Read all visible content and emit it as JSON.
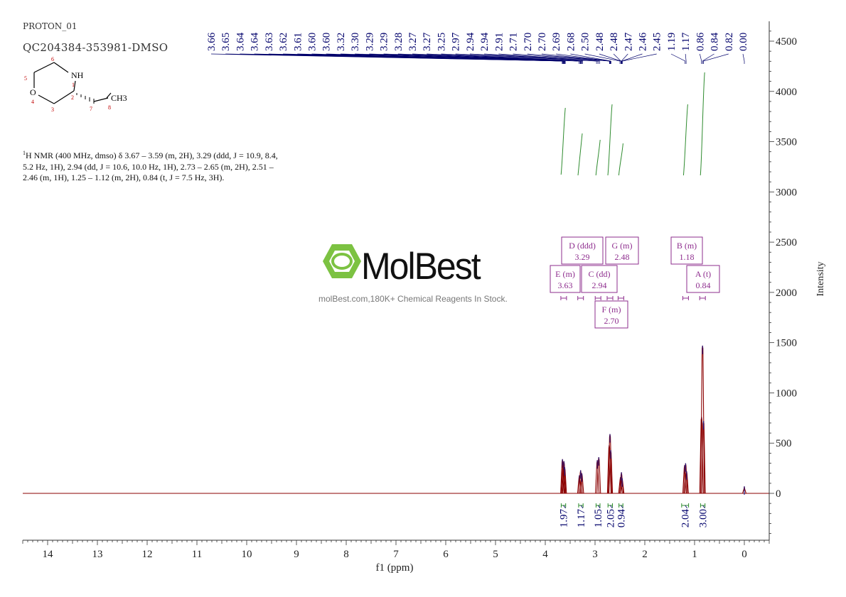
{
  "header": {
    "experiment": "PROTON_01",
    "sample_id": "QC204384-353981-DMSO"
  },
  "structure": {
    "atoms": {
      "nh": "NH",
      "o": "O",
      "ch3": "CH3"
    },
    "numbers": [
      "1",
      "2",
      "3",
      "4",
      "5",
      "6",
      "7",
      "8"
    ]
  },
  "nmr_text": "H NMR (400 MHz, dmso) δ 3.67 – 3.59 (m, 2H), 3.29 (ddd, J = 10.9, 8.4, 5.2 Hz, 1H), 2.94 (dd, J = 10.6, 10.0 Hz, 1H), 2.73 – 2.65 (m, 2H), 2.51 – 2.46 (m, 1H), 1.25 – 1.12 (m, 2H), 0.84 (t, J = 7.5 Hz, 3H).",
  "nmr_text_sup": "1",
  "watermark": {
    "brand": "MolBest",
    "tagline": "molBest.com,180K+ Chemical Reagents In Stock."
  },
  "colors": {
    "spectrum": "#8b0000",
    "peak_labels": "#00006b",
    "integral": "#2e8b2e",
    "multiplet_box": "#8e2d8e",
    "axis": "#333333"
  },
  "chart_data": {
    "type": "line",
    "xlabel": "f1 (ppm)",
    "ylabel": "Intensity",
    "xlim": [
      14.5,
      -0.5
    ],
    "ylim": [
      -450,
      4700
    ],
    "x_ticks": [
      14,
      13,
      12,
      11,
      10,
      9,
      8,
      7,
      6,
      5,
      4,
      3,
      2,
      1,
      0
    ],
    "y_ticks": [
      0,
      500,
      1000,
      1500,
      2000,
      2500,
      3000,
      3500,
      4000,
      4500
    ],
    "peak_labels": [
      "3.66",
      "3.65",
      "3.64",
      "3.64",
      "3.63",
      "3.62",
      "3.61",
      "3.60",
      "3.60",
      "3.32",
      "3.30",
      "3.29",
      "3.29",
      "3.28",
      "3.27",
      "3.27",
      "3.25",
      "2.97",
      "2.94",
      "2.94",
      "2.91",
      "2.71",
      "2.70",
      "2.70",
      "2.69",
      "2.68",
      "2.50",
      "2.48",
      "2.48",
      "2.47",
      "2.46",
      "2.45",
      "1.19",
      "1.17",
      "0.86",
      "0.84",
      "0.82",
      "0.00"
    ],
    "peaks": [
      {
        "ppm": 3.655,
        "height": 340
      },
      {
        "ppm": 3.64,
        "height": 300
      },
      {
        "ppm": 3.625,
        "height": 320
      },
      {
        "ppm": 3.61,
        "height": 260
      },
      {
        "ppm": 3.315,
        "height": 180
      },
      {
        "ppm": 3.29,
        "height": 230
      },
      {
        "ppm": 3.265,
        "height": 200
      },
      {
        "ppm": 2.955,
        "height": 330
      },
      {
        "ppm": 2.925,
        "height": 360
      },
      {
        "ppm": 2.715,
        "height": 480
      },
      {
        "ppm": 2.7,
        "height": 590
      },
      {
        "ppm": 2.685,
        "height": 430
      },
      {
        "ppm": 2.49,
        "height": 160
      },
      {
        "ppm": 2.47,
        "height": 210
      },
      {
        "ppm": 2.455,
        "height": 150
      },
      {
        "ppm": 1.2,
        "height": 280
      },
      {
        "ppm": 1.18,
        "height": 300
      },
      {
        "ppm": 1.16,
        "height": 220
      },
      {
        "ppm": 0.86,
        "height": 760
      },
      {
        "ppm": 0.84,
        "height": 1470
      },
      {
        "ppm": 0.82,
        "height": 720
      },
      {
        "ppm": 0.0,
        "height": 70
      }
    ],
    "integrals": [
      {
        "from": 3.68,
        "to": 3.59,
        "value": "1.97"
      },
      {
        "from": 3.33,
        "to": 3.24,
        "value": "1.17"
      },
      {
        "from": 2.98,
        "to": 2.9,
        "value": "1.05"
      },
      {
        "from": 2.74,
        "to": 2.65,
        "value": "2.05"
      },
      {
        "from": 2.52,
        "to": 2.44,
        "value": "0.94"
      },
      {
        "from": 1.26,
        "to": 1.12,
        "value": "2.04"
      },
      {
        "from": 0.88,
        "to": 0.79,
        "value": "3.00"
      }
    ],
    "multiplets": [
      {
        "label": "D (ddd)",
        "shift": "3.29",
        "ppm": 3.29
      },
      {
        "label": "G (m)",
        "shift": "2.48",
        "ppm": 2.48
      },
      {
        "label": "B (m)",
        "shift": "1.18",
        "ppm": 1.18
      },
      {
        "label": "E (m)",
        "shift": "3.63",
        "ppm": 3.63
      },
      {
        "label": "C (dd)",
        "shift": "2.94",
        "ppm": 2.94
      },
      {
        "label": "A (t)",
        "shift": "0.84",
        "ppm": 0.84
      },
      {
        "label": "F (m)",
        "shift": "2.70",
        "ppm": 2.7
      }
    ]
  }
}
